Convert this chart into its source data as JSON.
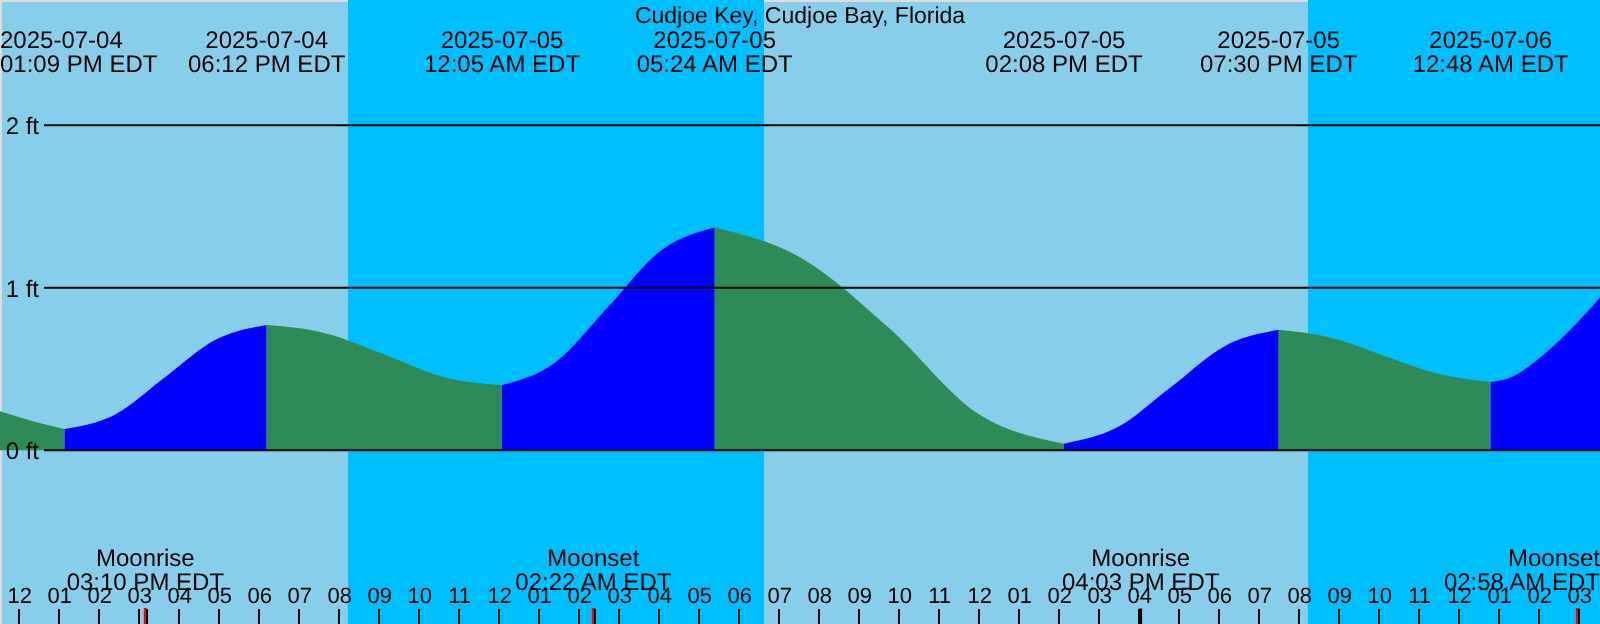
{
  "chart_data": {
    "type": "area",
    "title": "Cudjoe Key, Cudjoe Bay, Florida",
    "series": [
      {
        "color": "#2e8b57",
        "x": [
          "2025-07-04T11:32",
          "2025-07-04T12:20",
          "2025-07-04T13:09"
        ],
        "values": [
          0.24,
          0.18,
          0.13
        ]
      },
      {
        "color": "#0000ff",
        "x": [
          "2025-07-04T13:09",
          "2025-07-04T14:25",
          "2025-07-04T15:40",
          "2025-07-04T16:56",
          "2025-07-04T18:12"
        ],
        "values": [
          0.13,
          0.22,
          0.45,
          0.68,
          0.77
        ]
      },
      {
        "color": "#2e8b57",
        "x": [
          "2025-07-04T18:12",
          "2025-07-04T19:40",
          "2025-07-04T21:08",
          "2025-07-04T22:37",
          "2025-07-05T00:05"
        ],
        "values": [
          0.77,
          0.72,
          0.59,
          0.45,
          0.4
        ]
      },
      {
        "color": "#0000ff",
        "x": [
          "2025-07-05T00:05",
          "2025-07-05T01:25",
          "2025-07-05T02:44",
          "2025-07-05T04:04",
          "2025-07-05T05:24"
        ],
        "values": [
          0.4,
          0.54,
          0.88,
          1.23,
          1.37
        ]
      },
      {
        "color": "#2e8b57",
        "x": [
          "2025-07-05T05:24",
          "2025-07-05T07:35",
          "2025-07-05T09:46",
          "2025-07-05T11:57",
          "2025-07-05T14:08"
        ],
        "values": [
          1.37,
          1.18,
          0.75,
          0.23,
          0.04
        ]
      },
      {
        "color": "#0000ff",
        "x": [
          "2025-07-05T14:08",
          "2025-07-05T15:28",
          "2025-07-05T16:49",
          "2025-07-05T18:09",
          "2025-07-05T19:30"
        ],
        "values": [
          0.04,
          0.14,
          0.39,
          0.64,
          0.74
        ]
      },
      {
        "color": "#2e8b57",
        "x": [
          "2025-07-05T19:30",
          "2025-07-05T20:50",
          "2025-07-05T22:09",
          "2025-07-05T23:29",
          "2025-07-06T00:48"
        ],
        "values": [
          0.74,
          0.69,
          0.58,
          0.47,
          0.42
        ]
      },
      {
        "color": "#0000ff",
        "x": [
          "2025-07-06T00:48",
          "2025-07-06T01:20",
          "2025-07-06T01:53",
          "2025-07-06T02:45",
          "2025-07-06T03:32"
        ],
        "values": [
          0.42,
          0.45,
          0.54,
          0.73,
          0.94
        ]
      }
    ],
    "xlim": [
      "2025-07-04T11:32",
      "2025-07-06T03:32"
    ],
    "xticks": [
      {
        "value": "2025-07-04T12:00",
        "label": "12"
      },
      {
        "value": "2025-07-04T13:00",
        "label": "01"
      },
      {
        "value": "2025-07-04T14:00",
        "label": "02"
      },
      {
        "value": "2025-07-04T15:00",
        "label": "03"
      },
      {
        "value": "2025-07-04T15:10",
        "label": null
      },
      {
        "value": "2025-07-04T16:00",
        "label": "04"
      },
      {
        "value": "2025-07-04T17:00",
        "label": "05"
      },
      {
        "value": "2025-07-04T18:00",
        "label": "06"
      },
      {
        "value": "2025-07-04T19:00",
        "label": "07"
      },
      {
        "value": "2025-07-04T20:00",
        "label": "08"
      },
      {
        "value": "2025-07-04T21:00",
        "label": "09"
      },
      {
        "value": "2025-07-04T22:00",
        "label": "10"
      },
      {
        "value": "2025-07-04T23:00",
        "label": "11"
      },
      {
        "value": "2025-07-05T00:00",
        "label": "12"
      },
      {
        "value": "2025-07-05T01:00",
        "label": "01"
      },
      {
        "value": "2025-07-05T02:00",
        "label": "02"
      },
      {
        "value": "2025-07-05T02:22",
        "label": null
      },
      {
        "value": "2025-07-05T03:00",
        "label": "03"
      },
      {
        "value": "2025-07-05T04:00",
        "label": "04"
      },
      {
        "value": "2025-07-05T05:00",
        "label": "05"
      },
      {
        "value": "2025-07-05T06:00",
        "label": "06"
      },
      {
        "value": "2025-07-05T07:00",
        "label": "07"
      },
      {
        "value": "2025-07-05T08:00",
        "label": "08"
      },
      {
        "value": "2025-07-05T09:00",
        "label": "09"
      },
      {
        "value": "2025-07-05T10:00",
        "label": "10"
      },
      {
        "value": "2025-07-05T11:00",
        "label": "11"
      },
      {
        "value": "2025-07-05T12:00",
        "label": "12"
      },
      {
        "value": "2025-07-05T13:00",
        "label": "01"
      },
      {
        "value": "2025-07-05T14:00",
        "label": "02"
      },
      {
        "value": "2025-07-05T15:00",
        "label": "03"
      },
      {
        "value": "2025-07-05T16:00",
        "label": "04"
      },
      {
        "value": "2025-07-05T16:03",
        "label": null
      },
      {
        "value": "2025-07-05T17:00",
        "label": "05"
      },
      {
        "value": "2025-07-05T18:00",
        "label": "06"
      },
      {
        "value": "2025-07-05T19:00",
        "label": "07"
      },
      {
        "value": "2025-07-05T20:00",
        "label": "08"
      },
      {
        "value": "2025-07-05T21:00",
        "label": "09"
      },
      {
        "value": "2025-07-05T22:00",
        "label": "10"
      },
      {
        "value": "2025-07-05T23:00",
        "label": "11"
      },
      {
        "value": "2025-07-06T00:00",
        "label": "12"
      },
      {
        "value": "2025-07-06T01:00",
        "label": "01"
      },
      {
        "value": "2025-07-06T02:00",
        "label": "02"
      },
      {
        "value": "2025-07-06T02:58",
        "label": null
      },
      {
        "value": "2025-07-06T03:00",
        "label": "03"
      }
    ],
    "ylim": [
      -1.07,
      2.77
    ],
    "yticks": [
      {
        "value": 0,
        "label": "0 ft"
      },
      {
        "value": 1,
        "label": "1 ft"
      },
      {
        "value": 2,
        "label": "2 ft"
      }
    ],
    "grid": "y",
    "bands": [
      {
        "axis": "x",
        "from": "2025-07-04T20:14",
        "to": "2025-07-05T06:38",
        "color": "#00bfff"
      },
      {
        "axis": "x",
        "from": "2025-07-05T20:14",
        "to": "2025-07-06T03:32",
        "color": "#00bfff"
      }
    ],
    "annotations": [
      "2025-07-04\n01:09 PM EDT",
      "2025-07-04\n06:12 PM EDT",
      "2025-07-05\n12:05 AM EDT",
      "2025-07-05\n05:24 AM EDT",
      "2025-07-05\n02:08 PM EDT",
      "2025-07-05\n07:30 PM EDT",
      "2025-07-06\n12:48 AM EDT",
      "Moonrise\n03:10 PM EDT",
      "Moonset\n02:22 AM EDT",
      "Moonrise\n04:03 PM EDT",
      "Moonset\n02:58 AM EDT"
    ]
  }
}
